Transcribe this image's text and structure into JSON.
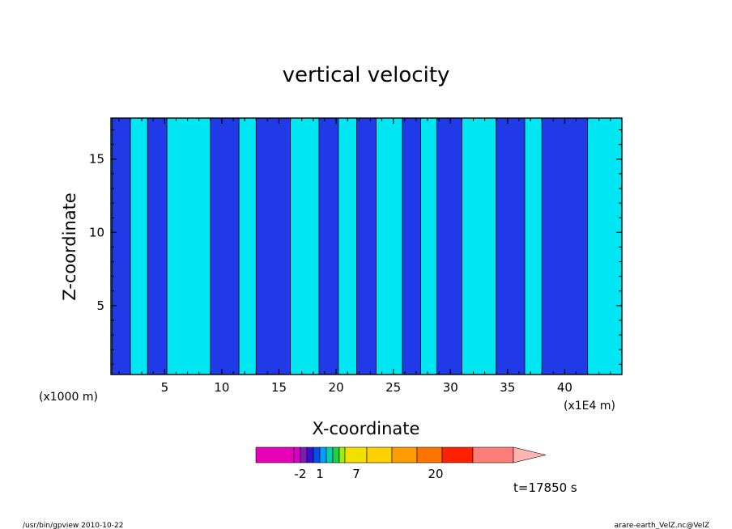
{
  "chart_data": {
    "type": "heatmap",
    "title": "vertical velocity",
    "xlabel": "X-coordinate",
    "ylabel": "Z-coordinate",
    "x_unit_left": "(x1000 m)",
    "x_unit_right": "(x1E4 m)",
    "xlim": [
      0.3,
      45
    ],
    "ylim": [
      0.3,
      17.8
    ],
    "x_ticks": [
      5,
      10,
      15,
      20,
      25,
      30,
      35,
      40
    ],
    "y_ticks": [
      5,
      10,
      15
    ],
    "time_label": "t=17850 s",
    "colors": {
      "negative_fill": "#1f3ae6",
      "positive_fill": "#00e6f2",
      "contour_line": "#000000"
    },
    "x_band_edges": [
      0.3,
      0.4,
      2.0,
      3.5,
      5.2,
      9.0,
      11.5,
      13.0,
      16.0,
      18.5,
      20.2,
      21.8,
      23.5,
      25.8,
      27.4,
      28.8,
      31.0,
      34.0,
      36.5,
      38.0,
      42.0,
      45.0
    ],
    "band_sign": [
      1,
      -1,
      1,
      -1,
      1,
      -1,
      1,
      -1,
      1,
      -1,
      1,
      -1,
      1,
      -1,
      1,
      -1,
      1,
      -1,
      1,
      -1,
      1
    ],
    "colorbar": {
      "colors": [
        "#e600b8",
        "#d600c8",
        "#7a1fb0",
        "#3a10d0",
        "#0050f0",
        "#00a0ff",
        "#00d0b0",
        "#20d040",
        "#9bee10",
        "#f2e000",
        "#ffd000",
        "#ff9c00",
        "#ff7400",
        "#ff2000",
        "#ff7d78",
        "#ffb4b4"
      ],
      "labels": [
        "-2",
        "1",
        "7",
        "20"
      ]
    }
  },
  "footer": {
    "left": "/usr/bin/gpview   2010-10-22",
    "right": "arare-earth_VelZ.nc@VelZ"
  }
}
